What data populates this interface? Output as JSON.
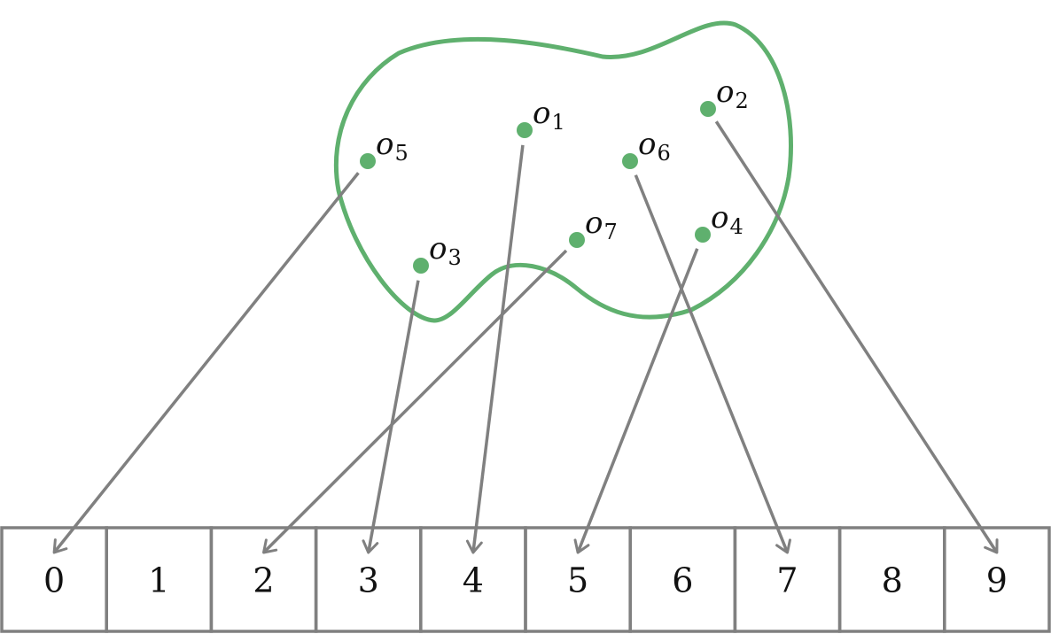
{
  "colors": {
    "set_outline": "#5fb06e",
    "object_dot": "#5fb06e",
    "arrow": "#808080",
    "cell_border": "#808080",
    "text": "#111111"
  },
  "objects": [
    {
      "id": "o1",
      "symbol": "o",
      "index": "1",
      "target": 4
    },
    {
      "id": "o2",
      "symbol": "o",
      "index": "2",
      "target": 9
    },
    {
      "id": "o3",
      "symbol": "o",
      "index": "3",
      "target": 3
    },
    {
      "id": "o4",
      "symbol": "o",
      "index": "4",
      "target": 5
    },
    {
      "id": "o5",
      "symbol": "o",
      "index": "5",
      "target": 0
    },
    {
      "id": "o6",
      "symbol": "o",
      "index": "6",
      "target": 7
    },
    {
      "id": "o7",
      "symbol": "o",
      "index": "7",
      "target": 2
    }
  ],
  "table": {
    "cells": [
      "0",
      "1",
      "2",
      "3",
      "4",
      "5",
      "6",
      "7",
      "8",
      "9"
    ]
  }
}
